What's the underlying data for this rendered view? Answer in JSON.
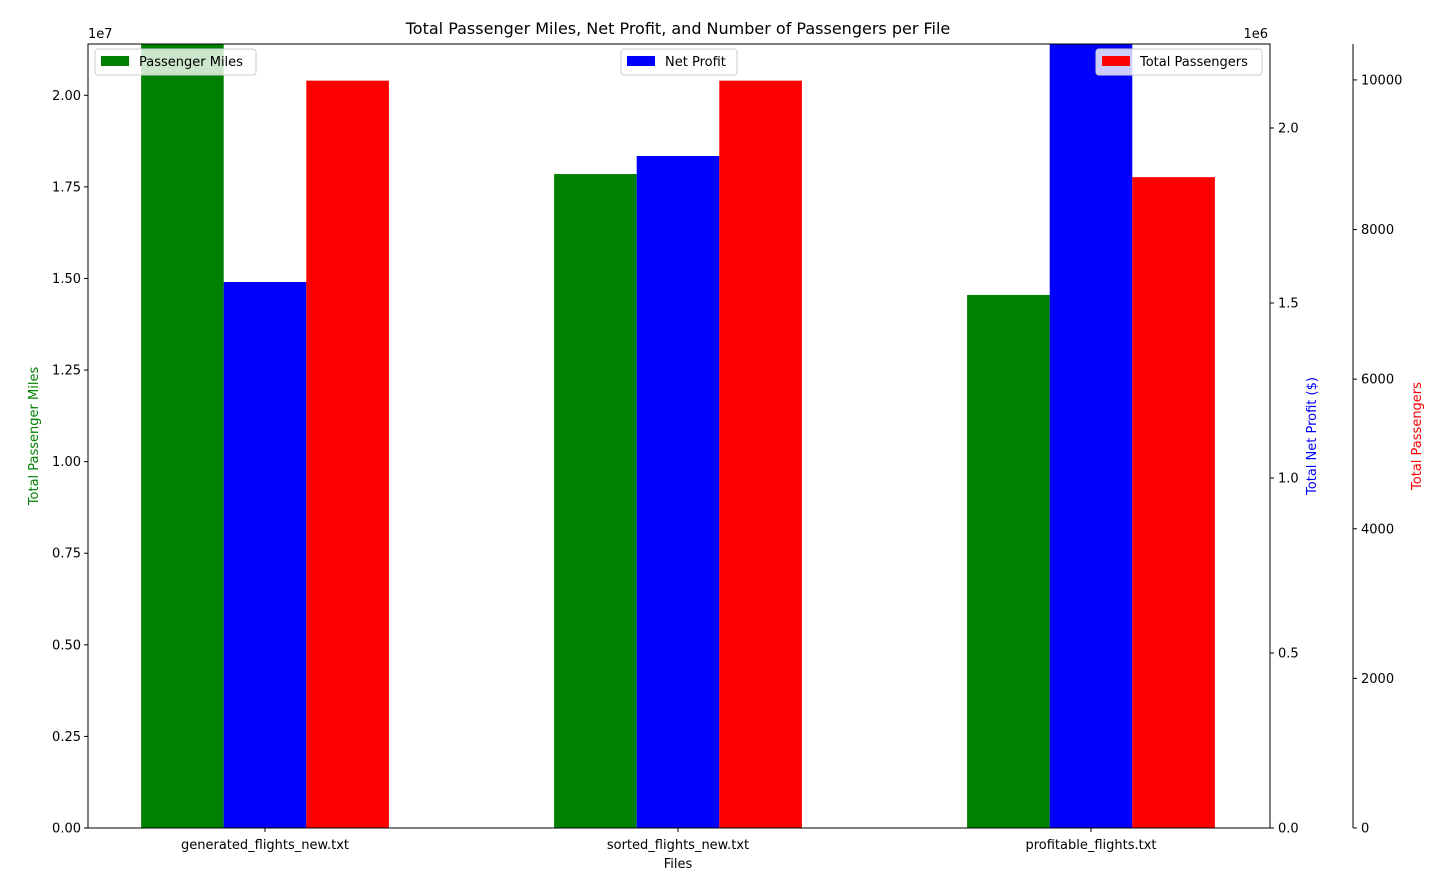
{
  "chart_data": {
    "type": "bar",
    "title": "Total Passenger Miles, Net Profit, and Number of Passengers per File",
    "xlabel": "Files",
    "categories": [
      "generated_flights_new.txt",
      "sorted_flights_new.txt",
      "profitable_flights.txt"
    ],
    "series": [
      {
        "name": "Passenger Miles",
        "axis": "left",
        "color": "#008000",
        "values": [
          21400000,
          17850000,
          14550000
        ]
      },
      {
        "name": "Net Profit",
        "axis": "right",
        "color": "#0000ff",
        "values": [
          1560000,
          1920000,
          2240000
        ]
      },
      {
        "name": "Total Passengers",
        "axis": "right2",
        "color": "#ff0000",
        "values": [
          9990,
          9990,
          8700
        ]
      }
    ],
    "axes": {
      "left": {
        "label": "Total Passenger Miles",
        "color": "#008000",
        "scale_text": "1e7",
        "divisor": 10000000,
        "ylim": [
          0,
          21400000
        ],
        "ticks": [
          0,
          2500000,
          5000000,
          7500000,
          10000000,
          12500000,
          15000000,
          17500000,
          20000000
        ],
        "tick_labels": [
          "0.00",
          "0.25",
          "0.50",
          "0.75",
          "1.00",
          "1.25",
          "1.50",
          "1.75",
          "2.00"
        ]
      },
      "right": {
        "label": "Total Net Profit ($)",
        "color": "#0000ff",
        "scale_text": "1e6",
        "divisor": 1000000,
        "ylim": [
          0,
          2240000
        ],
        "ticks": [
          0,
          500000,
          1000000,
          1500000,
          2000000
        ],
        "tick_labels": [
          "0.0",
          "0.5",
          "1.0",
          "1.5",
          "2.0"
        ]
      },
      "right2": {
        "label": "Total Passengers",
        "color": "#ff0000",
        "ylim": [
          0,
          10480
        ],
        "ticks": [
          0,
          2000,
          4000,
          6000,
          8000,
          10000
        ],
        "tick_labels": [
          "0",
          "2000",
          "4000",
          "6000",
          "8000",
          "10000"
        ]
      }
    },
    "legends": [
      {
        "series": "Passenger Miles",
        "placement": "upper-left"
      },
      {
        "series": "Net Profit",
        "placement": "upper-center"
      },
      {
        "series": "Total Passengers",
        "placement": "upper-right"
      }
    ],
    "grid": false
  }
}
